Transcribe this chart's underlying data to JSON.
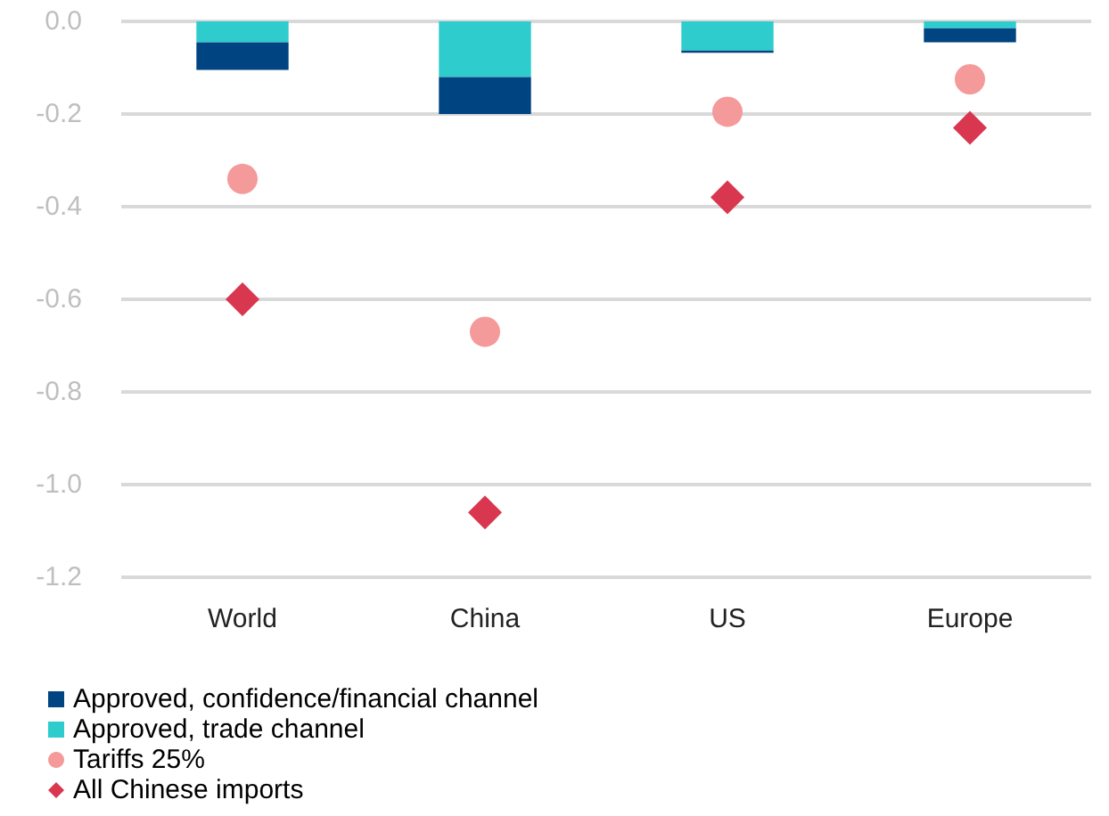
{
  "chart_data": {
    "type": "bar",
    "stacked": true,
    "categories": [
      "World",
      "China",
      "US",
      "Europe"
    ],
    "series": [
      {
        "name": "Approved, trade channel",
        "color": "#2ecccc",
        "values": [
          -0.045,
          -0.12,
          -0.063,
          -0.015
        ]
      },
      {
        "name": "Approved, confidence/financial channel",
        "color": "#004481",
        "values": [
          -0.06,
          -0.08,
          -0.005,
          -0.03
        ]
      },
      {
        "name": "Tariffs 25%",
        "type": "scatter",
        "marker": "circle",
        "color": "#f59a9a",
        "x": [
          "World",
          "China",
          "US",
          "Europe"
        ],
        "values": [
          -0.34,
          -0.67,
          -0.195,
          -0.125
        ]
      },
      {
        "name": "All Chinese imports",
        "type": "scatter",
        "marker": "diamond",
        "color": "#d9364f",
        "x": [
          "World",
          "China",
          "US",
          "Europe"
        ],
        "values": [
          -0.6,
          -1.06,
          -0.38,
          -0.23
        ]
      }
    ],
    "ylim": [
      -1.2,
      0
    ],
    "yticks": [
      {
        "value": 0,
        "label": "0.0"
      },
      {
        "value": -0.2,
        "label": "-0.2"
      },
      {
        "value": -0.4,
        "label": "-0.4"
      },
      {
        "value": -0.6,
        "label": "-0.6"
      },
      {
        "value": -0.8,
        "label": "-0.8"
      },
      {
        "value": -1,
        "label": "-1.0"
      },
      {
        "value": -1.2,
        "label": "-1.2"
      }
    ],
    "grid": "y",
    "legend": "bottom left"
  }
}
